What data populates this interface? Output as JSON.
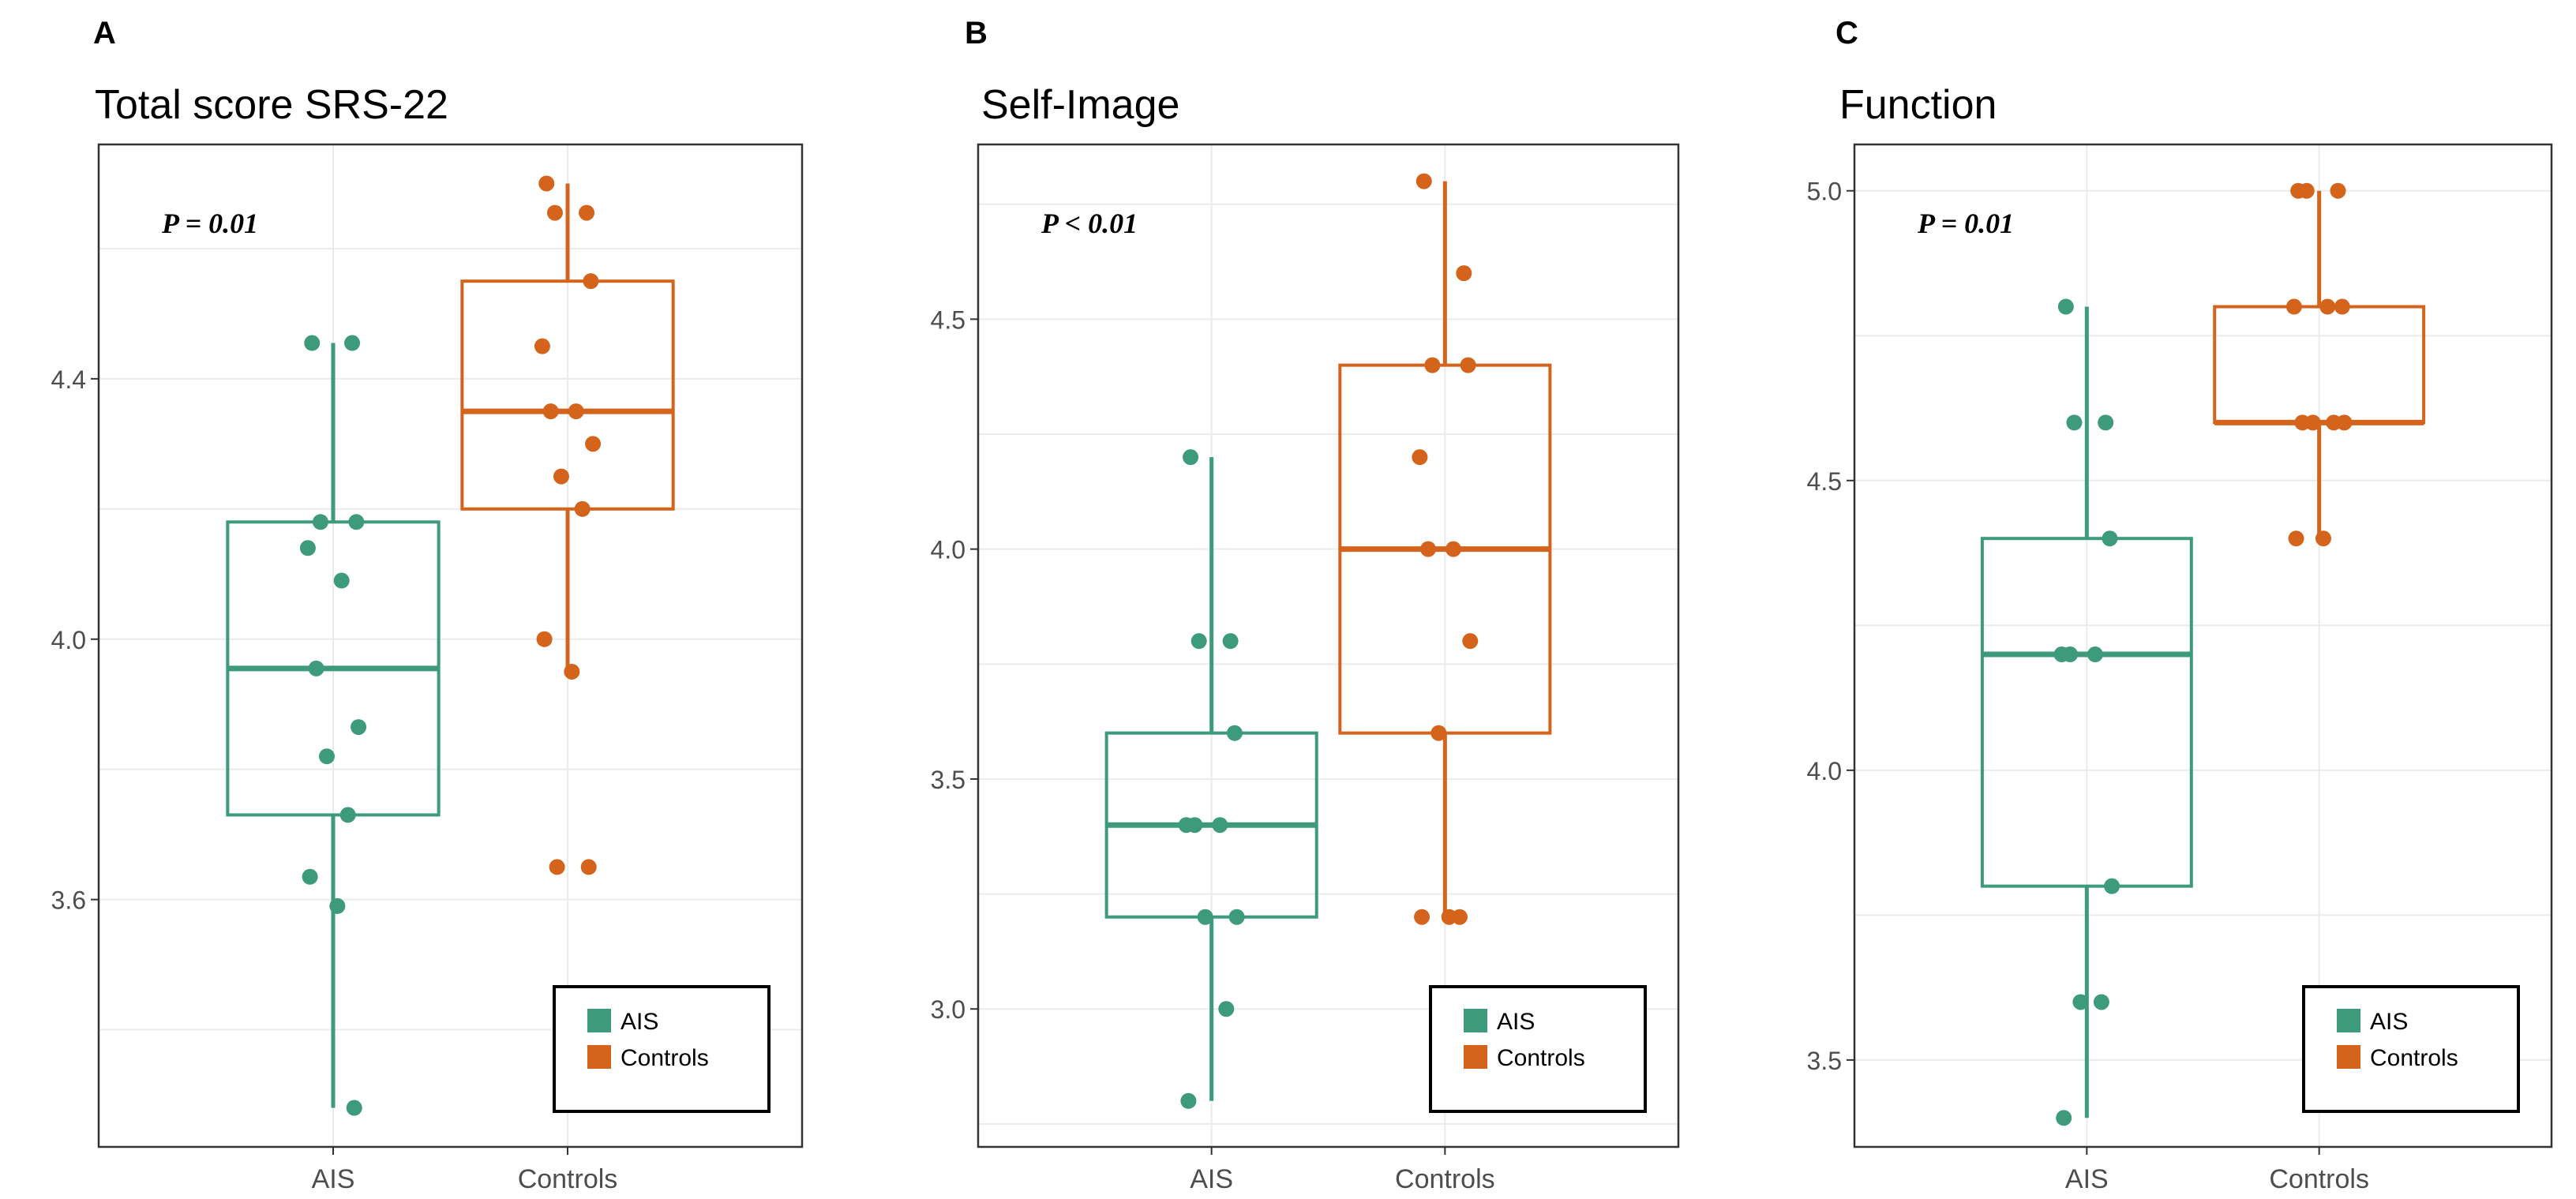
{
  "colors": {
    "AIS": "#3d9a7a",
    "Controls": "#d4641c"
  },
  "chart_data": [
    {
      "type": "boxplot",
      "panel_letter": "A",
      "title": "Total score SRS-22",
      "annotation": "P = 0.01",
      "categories": [
        "AIS",
        "Controls"
      ],
      "yticks": [
        3.6,
        4.0,
        4.4
      ],
      "ylim": [
        3.22,
        4.76
      ],
      "boxes": [
        {
          "group": "AIS",
          "min": 3.28,
          "q1": 3.73,
          "median": 3.955,
          "q3": 4.18,
          "max": 4.455
        },
        {
          "group": "Controls",
          "min": 3.95,
          "q1": 4.2,
          "median": 4.35,
          "q3": 4.55,
          "max": 4.7
        }
      ],
      "points": [
        {
          "group": "AIS",
          "values": [
            4.455,
            4.455,
            4.18,
            4.18,
            4.14,
            4.09,
            3.955,
            3.865,
            3.82,
            3.73,
            3.635,
            3.59,
            3.28
          ]
        },
        {
          "group": "Controls",
          "values": [
            4.7,
            4.655,
            4.655,
            4.55,
            4.45,
            4.35,
            4.35,
            4.3,
            4.25,
            4.2,
            4.0,
            3.95,
            3.65,
            3.65
          ]
        }
      ],
      "legend": {
        "position": "bottom-right",
        "entries": [
          "AIS",
          "Controls"
        ]
      },
      "grid": true
    },
    {
      "type": "boxplot",
      "panel_letter": "B",
      "title": "Self-Image",
      "annotation": "P < 0.01",
      "categories": [
        "AIS",
        "Controls"
      ],
      "yticks": [
        3.0,
        3.5,
        4.0,
        4.5
      ],
      "ylim": [
        2.7,
        4.88
      ],
      "boxes": [
        {
          "group": "AIS",
          "min": 2.8,
          "q1": 3.2,
          "median": 3.4,
          "q3": 3.6,
          "max": 4.2
        },
        {
          "group": "Controls",
          "min": 3.2,
          "q1": 3.6,
          "median": 4.0,
          "q3": 4.4,
          "max": 4.8
        }
      ],
      "points": [
        {
          "group": "AIS",
          "values": [
            4.2,
            3.8,
            3.8,
            3.6,
            3.4,
            3.4,
            3.4,
            3.2,
            3.2,
            3.0,
            2.8
          ]
        },
        {
          "group": "Controls",
          "values": [
            4.8,
            4.6,
            4.4,
            4.4,
            4.2,
            4.0,
            4.0,
            3.8,
            3.6,
            3.2,
            3.2,
            3.2
          ]
        }
      ],
      "legend": {
        "position": "bottom-right",
        "entries": [
          "AIS",
          "Controls"
        ]
      },
      "grid": true
    },
    {
      "type": "boxplot",
      "panel_letter": "C",
      "title": "Function",
      "annotation": "P = 0.01",
      "categories": [
        "AIS",
        "Controls"
      ],
      "yticks": [
        3.5,
        4.0,
        4.5,
        5.0
      ],
      "ylim": [
        3.35,
        5.08
      ],
      "boxes": [
        {
          "group": "AIS",
          "min": 3.4,
          "q1": 3.8,
          "median": 4.2,
          "q3": 4.4,
          "max": 4.8
        },
        {
          "group": "Controls",
          "min": 4.4,
          "q1": 4.6,
          "median": 4.6,
          "q3": 4.8,
          "max": 5.0
        }
      ],
      "points": [
        {
          "group": "AIS",
          "values": [
            4.8,
            4.6,
            4.6,
            4.4,
            4.2,
            4.2,
            4.2,
            3.8,
            3.6,
            3.6,
            3.4
          ]
        },
        {
          "group": "Controls",
          "values": [
            5.0,
            5.0,
            5.0,
            4.8,
            4.8,
            4.8,
            4.6,
            4.6,
            4.6,
            4.6,
            4.4,
            4.4
          ]
        }
      ],
      "legend": {
        "position": "bottom-right",
        "entries": [
          "AIS",
          "Controls"
        ]
      },
      "grid": true
    }
  ]
}
